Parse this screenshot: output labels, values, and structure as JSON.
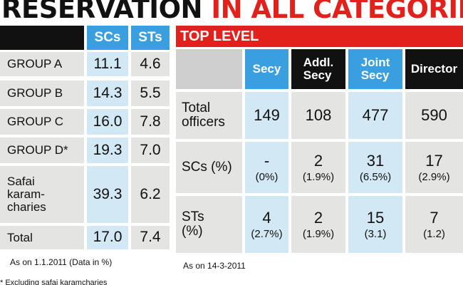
{
  "header": {
    "title_black": "RESERVATION",
    "title_red": "IN ALL CATEGORIES"
  },
  "left_table": {
    "columns": [
      "SCs",
      "STs"
    ],
    "rows": [
      {
        "label": "GROUP A",
        "cells": [
          "11.1",
          "4.6"
        ]
      },
      {
        "label": "GROUP B",
        "cells": [
          "14.3",
          "5.5"
        ]
      },
      {
        "label": "GROUP C",
        "cells": [
          "16.0",
          "7.8"
        ]
      },
      {
        "label": "GROUP D*",
        "cells": [
          "19.3",
          "7.0"
        ]
      },
      {
        "label": "Safai\nkaram-\ncharies",
        "cells": [
          "39.3",
          "6.2"
        ]
      },
      {
        "label": "Total",
        "cells": [
          "17.0",
          "7.4"
        ]
      }
    ],
    "note": "As on 1.1.2011 (Data in %)"
  },
  "right_table": {
    "banner": "TOP LEVEL",
    "columns": [
      "Secy",
      "Addl.\nSecy",
      "Joint\nSecy",
      "Director"
    ],
    "rows": [
      {
        "label": "Total\nofficers",
        "cells": [
          [
            "149"
          ],
          [
            "108"
          ],
          [
            "477"
          ],
          [
            "590"
          ]
        ]
      },
      {
        "label": "SCs (%)",
        "cells": [
          [
            "-",
            "(0%)"
          ],
          [
            "2",
            "(1.9%)"
          ],
          [
            "31",
            "(6.5%)"
          ],
          [
            "17",
            "(2.9%)"
          ]
        ]
      },
      {
        "label": "STs\n(%)",
        "cells": [
          [
            "4",
            "(2.7%)"
          ],
          [
            "2",
            "(1.9%)"
          ],
          [
            "15",
            "(3.1)"
          ],
          [
            "7",
            "(1.2)"
          ]
        ]
      }
    ],
    "note": "As on 14-3-2011"
  },
  "footnote": "* Excluding safai karamcharies"
}
